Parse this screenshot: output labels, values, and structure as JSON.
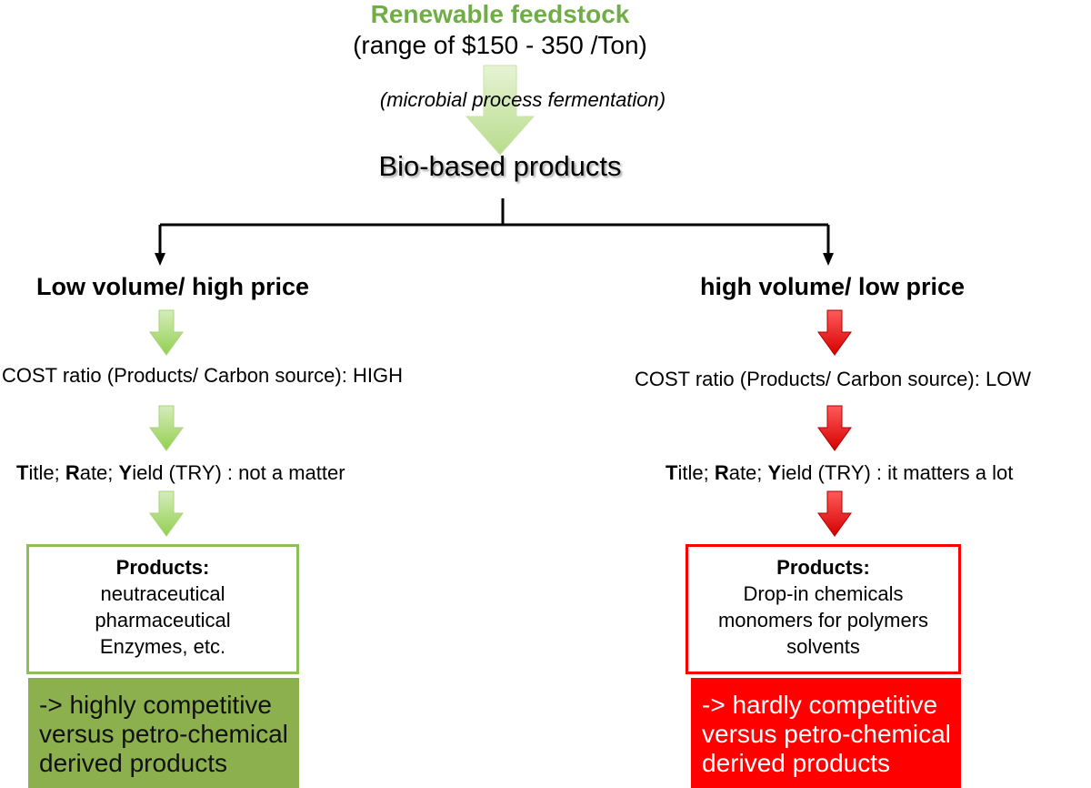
{
  "top": {
    "title": "Renewable feedstock",
    "subtitle": "(range of $150 - 350 /Ton)",
    "process_label": "(microbial process fermentation)",
    "center_label": "Bio-based products"
  },
  "left": {
    "title": "Low volume/ high price",
    "cost_line": "COST ratio (Products/ Carbon source): HIGH",
    "try_line": {
      "t": "T",
      "t_rest": "itle; ",
      "r": "R",
      "r_rest": "ate; ",
      "y": "Y",
      "y_rest": "ield (TRY) : not a matter"
    },
    "products_title": "Products:",
    "products": [
      "neutraceutical",
      "pharmaceutical",
      "Enzymes, etc."
    ],
    "verdict": [
      "-> highly competitive",
      "versus petro-chemical",
      "derived products"
    ]
  },
  "right": {
    "title": "high volume/ low price",
    "cost_line": "COST ratio (Products/ Carbon source): LOW",
    "try_line": {
      "t": "T",
      "t_rest": "itle; ",
      "r": "R",
      "r_rest": "ate; ",
      "y": "Y",
      "y_rest": "ield (TRY) : it matters a lot"
    },
    "products_title": "Products:",
    "products": [
      "Drop-in chemicals",
      "monomers for polymers",
      "solvents"
    ],
    "verdict": [
      "-> hardly competitive",
      "versus petro-chemical",
      "derived products"
    ]
  },
  "colors": {
    "green_text": "#70ad47",
    "green_arrow": "#92d050",
    "green_box_border": "#8cbf57",
    "green_fill": "#8db04f",
    "red": "#ff0000"
  }
}
